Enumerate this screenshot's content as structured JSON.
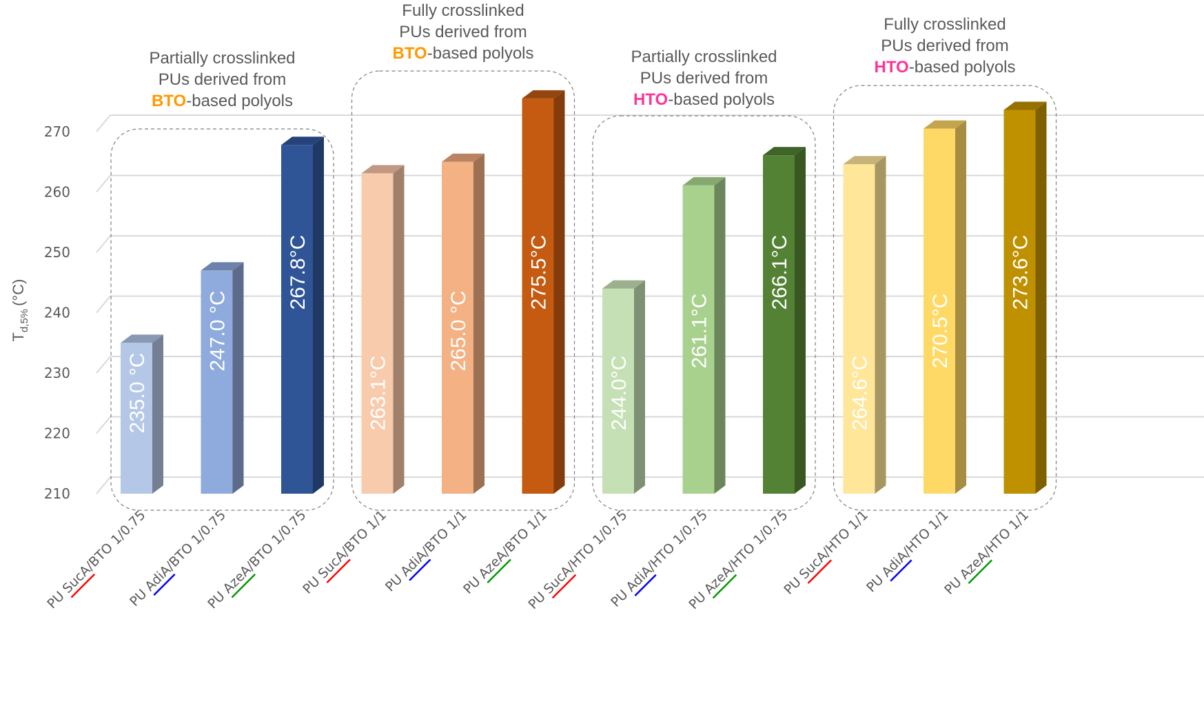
{
  "chart_data": {
    "type": "bar",
    "style": "3d-column",
    "title": "",
    "xlabel": "",
    "ylabel": "T",
    "ylabel_subscript": "d,5%",
    "ylabel_unit": "(°C)",
    "ylim": [
      210,
      270
    ],
    "yticks": [
      210,
      220,
      230,
      240,
      250,
      260,
      270
    ],
    "grid": true,
    "legend": "none",
    "categories": [
      {
        "prefix": "PU ",
        "acid": "SucA",
        "suffix": "/BTO 1/0.75",
        "underline_color": "#ff0000"
      },
      {
        "prefix": "PU ",
        "acid": "AdiA",
        "suffix": "/BTO 1/0.75",
        "underline_color": "#0000ff"
      },
      {
        "prefix": "PU ",
        "acid": "AzeA",
        "suffix": "/BTO 1/0.75",
        "underline_color": "#009900"
      },
      {
        "prefix": "PU ",
        "acid": "SucA",
        "suffix": "/BTO 1/1",
        "underline_color": "#ff0000"
      },
      {
        "prefix": "PU ",
        "acid": "AdiA",
        "suffix": "/BTO 1/1",
        "underline_color": "#0000ff"
      },
      {
        "prefix": "PU ",
        "acid": "AzeA",
        "suffix": "/BTO 1/1",
        "underline_color": "#009900"
      },
      {
        "prefix": "PU ",
        "acid": "SucA",
        "suffix": "/HTO 1/0.75",
        "underline_color": "#ff0000"
      },
      {
        "prefix": "PU ",
        "acid": "AdiA",
        "suffix": "/HTO 1/0.75",
        "underline_color": "#0000ff"
      },
      {
        "prefix": "PU ",
        "acid": "AzeA",
        "suffix": "/HTO 1/0.75",
        "underline_color": "#009900"
      },
      {
        "prefix": "PU ",
        "acid": "SucA",
        "suffix": "/HTO 1/1",
        "underline_color": "#ff0000"
      },
      {
        "prefix": "PU ",
        "acid": "AdiA",
        "suffix": "/HTO 1/1",
        "underline_color": "#0000ff"
      },
      {
        "prefix": "PU ",
        "acid": "AzeA",
        "suffix": "/HTO 1/1",
        "underline_color": "#009900"
      }
    ],
    "values": [
      235.0,
      247.0,
      267.8,
      263.1,
      265.0,
      275.5,
      244.0,
      261.1,
      266.1,
      264.6,
      270.5,
      273.6
    ],
    "data_labels": [
      "235.0 °C",
      "247.0 °C",
      "267.8°C",
      "263.1°C",
      "265.0 °C",
      "275.5°C",
      "244.0°C",
      "261.1°C",
      "266.1°C",
      "264.6°C",
      "270.5°C",
      "273.6°C"
    ],
    "bar_colors": [
      {
        "front": "#b4c7e7",
        "side": "#747f93",
        "top": "#8a99b3"
      },
      {
        "front": "#8faadc",
        "side": "#5c6b8a",
        "top": "#6d82ab"
      },
      {
        "front": "#2f5597",
        "side": "#203864",
        "top": "#25427a"
      },
      {
        "front": "#f8cbad",
        "side": "#a1806b",
        "top": "#c09883"
      },
      {
        "front": "#f4b183",
        "side": "#9c7052",
        "top": "#ba8463"
      },
      {
        "front": "#c55a11",
        "side": "#843c0c",
        "top": "#944610"
      },
      {
        "front": "#c5e0b4",
        "side": "#7f9175",
        "top": "#9cb08f"
      },
      {
        "front": "#a9d18e",
        "side": "#6b865a",
        "top": "#86a870"
      },
      {
        "front": "#548235",
        "side": "#385723",
        "top": "#3f6428"
      },
      {
        "front": "#ffe699",
        "side": "#a69662",
        "top": "#c7b37a"
      },
      {
        "front": "#ffd966",
        "side": "#a68d42",
        "top": "#c4a44d"
      },
      {
        "front": "#bf9000",
        "side": "#7f6000",
        "top": "#967100"
      }
    ],
    "groups": [
      {
        "lines": [
          "Partially crosslinked",
          "PUs derived from"
        ],
        "highlight": "BTO",
        "rest": "-based polyols",
        "highlight_color": "#ff9900",
        "members": [
          0,
          1,
          2
        ]
      },
      {
        "lines": [
          "Fully crosslinked",
          "PUs derived from"
        ],
        "highlight": "BTO",
        "rest": "-based polyols",
        "highlight_color": "#ff9900",
        "members": [
          3,
          4,
          5
        ]
      },
      {
        "lines": [
          "Partially crosslinked",
          "PUs derived from"
        ],
        "highlight": "HTO",
        "rest": "-based polyols",
        "highlight_color": "#ff3399",
        "members": [
          6,
          7,
          8
        ]
      },
      {
        "lines": [
          "Fully crosslinked",
          "PUs derived from"
        ],
        "highlight": "HTO",
        "rest": "-based polyols",
        "highlight_color": "#ff3399",
        "members": [
          9,
          10,
          11
        ]
      }
    ]
  }
}
